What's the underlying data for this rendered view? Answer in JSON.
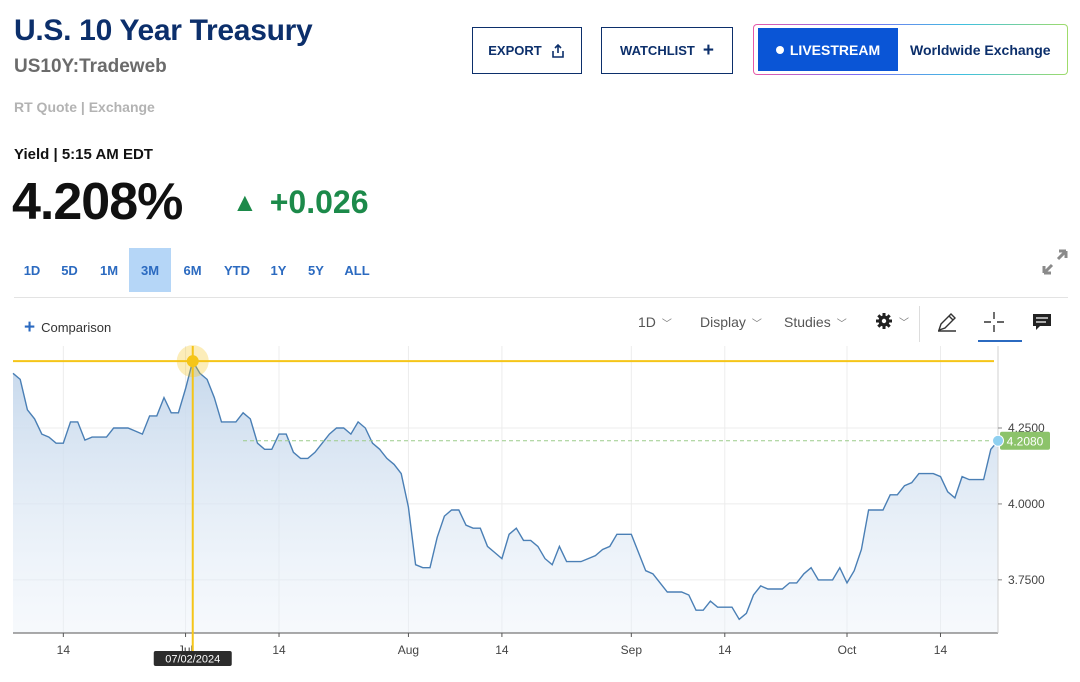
{
  "header": {
    "title": "U.S. 10 Year Treasury",
    "symbol": "US10Y:Tradeweb",
    "quote_source": "RT Quote | Exchange"
  },
  "buttons": {
    "export": "EXPORT",
    "watchlist": "WATCHLIST",
    "livestream": "LIVESTREAM",
    "exchange": "Worldwide Exchange"
  },
  "quote": {
    "label": "Yield | 5:15 AM EDT",
    "price": "4.208%",
    "change": "+0.026",
    "direction": "up",
    "change_color": "#1c8a4a"
  },
  "ranges": {
    "items": [
      "1D",
      "5D",
      "1M",
      "3M",
      "6M",
      "YTD",
      "1Y",
      "5Y",
      "ALL"
    ],
    "active": "3M"
  },
  "toolbar": {
    "comparison": "Comparison",
    "interval": "1D",
    "display": "Display",
    "studies": "Studies",
    "icons": [
      "gear-icon",
      "pencil-icon",
      "crosshair-icon",
      "comment-icon"
    ]
  },
  "chart_data": {
    "type": "area",
    "xlabel": "",
    "ylabel": "",
    "ylim": [
      3.575,
      4.52
    ],
    "yticks": [
      "4.2500",
      "4.0000",
      "3.7500"
    ],
    "ytick_values": [
      4.25,
      4.0,
      3.75
    ],
    "xtick_labels": [
      "14",
      "Jul",
      "14",
      "Aug",
      "14",
      "Sep",
      "14",
      "Oct",
      "14"
    ],
    "xtick_dates": [
      "2024-06-14",
      "2024-07-01",
      "2024-07-14",
      "2024-08-01",
      "2024-08-14",
      "2024-09-01",
      "2024-09-14",
      "2024-10-01",
      "2024-10-14"
    ],
    "last_value_label": "4.2080",
    "last_value": 4.208,
    "crosshair": {
      "date_label": "07/02/2024",
      "date": "2024-07-02",
      "value": 4.47
    },
    "series": [
      {
        "color": "#4a7fb5",
        "fill": "#c6d8ec",
        "points": [
          [
            "2024-06-07",
            4.43
          ],
          [
            "2024-06-08",
            4.41
          ],
          [
            "2024-06-09",
            4.31
          ],
          [
            "2024-06-10",
            4.28
          ],
          [
            "2024-06-11",
            4.23
          ],
          [
            "2024-06-12",
            4.22
          ],
          [
            "2024-06-13",
            4.2
          ],
          [
            "2024-06-14",
            4.2
          ],
          [
            "2024-06-15",
            4.27
          ],
          [
            "2024-06-16",
            4.27
          ],
          [
            "2024-06-17",
            4.21
          ],
          [
            "2024-06-18",
            4.22
          ],
          [
            "2024-06-19",
            4.22
          ],
          [
            "2024-06-20",
            4.22
          ],
          [
            "2024-06-21",
            4.25
          ],
          [
            "2024-06-22",
            4.25
          ],
          [
            "2024-06-23",
            4.25
          ],
          [
            "2024-06-24",
            4.24
          ],
          [
            "2024-06-25",
            4.23
          ],
          [
            "2024-06-26",
            4.29
          ],
          [
            "2024-06-27",
            4.29
          ],
          [
            "2024-06-28",
            4.35
          ],
          [
            "2024-06-29",
            4.3
          ],
          [
            "2024-06-30",
            4.3
          ],
          [
            "2024-07-01",
            4.38
          ],
          [
            "2024-07-02",
            4.47
          ],
          [
            "2024-07-03",
            4.43
          ],
          [
            "2024-07-04",
            4.41
          ],
          [
            "2024-07-05",
            4.35
          ],
          [
            "2024-07-06",
            4.27
          ],
          [
            "2024-07-07",
            4.27
          ],
          [
            "2024-07-08",
            4.27
          ],
          [
            "2024-07-09",
            4.3
          ],
          [
            "2024-07-10",
            4.28
          ],
          [
            "2024-07-11",
            4.2
          ],
          [
            "2024-07-12",
            4.18
          ],
          [
            "2024-07-13",
            4.18
          ],
          [
            "2024-07-14",
            4.23
          ],
          [
            "2024-07-15",
            4.23
          ],
          [
            "2024-07-16",
            4.17
          ],
          [
            "2024-07-17",
            4.15
          ],
          [
            "2024-07-18",
            4.15
          ],
          [
            "2024-07-19",
            4.17
          ],
          [
            "2024-07-20",
            4.2
          ],
          [
            "2024-07-21",
            4.23
          ],
          [
            "2024-07-22",
            4.25
          ],
          [
            "2024-07-23",
            4.25
          ],
          [
            "2024-07-24",
            4.23
          ],
          [
            "2024-07-25",
            4.27
          ],
          [
            "2024-07-26",
            4.25
          ],
          [
            "2024-07-27",
            4.2
          ],
          [
            "2024-07-28",
            4.18
          ],
          [
            "2024-07-29",
            4.15
          ],
          [
            "2024-07-30",
            4.13
          ],
          [
            "2024-07-31",
            4.1
          ],
          [
            "2024-08-01",
            3.99
          ],
          [
            "2024-08-02",
            3.8
          ],
          [
            "2024-08-03",
            3.79
          ],
          [
            "2024-08-04",
            3.79
          ],
          [
            "2024-08-05",
            3.89
          ],
          [
            "2024-08-06",
            3.96
          ],
          [
            "2024-08-07",
            3.98
          ],
          [
            "2024-08-08",
            3.98
          ],
          [
            "2024-08-09",
            3.93
          ],
          [
            "2024-08-10",
            3.92
          ],
          [
            "2024-08-11",
            3.92
          ],
          [
            "2024-08-12",
            3.86
          ],
          [
            "2024-08-13",
            3.84
          ],
          [
            "2024-08-14",
            3.82
          ],
          [
            "2024-08-15",
            3.9
          ],
          [
            "2024-08-16",
            3.92
          ],
          [
            "2024-08-17",
            3.88
          ],
          [
            "2024-08-18",
            3.88
          ],
          [
            "2024-08-19",
            3.86
          ],
          [
            "2024-08-20",
            3.82
          ],
          [
            "2024-08-21",
            3.8
          ],
          [
            "2024-08-22",
            3.86
          ],
          [
            "2024-08-23",
            3.81
          ],
          [
            "2024-08-24",
            3.81
          ],
          [
            "2024-08-25",
            3.81
          ],
          [
            "2024-08-26",
            3.82
          ],
          [
            "2024-08-27",
            3.83
          ],
          [
            "2024-08-28",
            3.85
          ],
          [
            "2024-08-29",
            3.86
          ],
          [
            "2024-08-30",
            3.9
          ],
          [
            "2024-08-31",
            3.9
          ],
          [
            "2024-09-01",
            3.9
          ],
          [
            "2024-09-02",
            3.84
          ],
          [
            "2024-09-03",
            3.78
          ],
          [
            "2024-09-04",
            3.77
          ],
          [
            "2024-09-05",
            3.74
          ],
          [
            "2024-09-06",
            3.71
          ],
          [
            "2024-09-07",
            3.71
          ],
          [
            "2024-09-08",
            3.71
          ],
          [
            "2024-09-09",
            3.7
          ],
          [
            "2024-09-10",
            3.65
          ],
          [
            "2024-09-11",
            3.65
          ],
          [
            "2024-09-12",
            3.68
          ],
          [
            "2024-09-13",
            3.66
          ],
          [
            "2024-09-14",
            3.66
          ],
          [
            "2024-09-15",
            3.66
          ],
          [
            "2024-09-16",
            3.62
          ],
          [
            "2024-09-17",
            3.64
          ],
          [
            "2024-09-18",
            3.7
          ],
          [
            "2024-09-19",
            3.73
          ],
          [
            "2024-09-20",
            3.72
          ],
          [
            "2024-09-21",
            3.72
          ],
          [
            "2024-09-22",
            3.72
          ],
          [
            "2024-09-23",
            3.74
          ],
          [
            "2024-09-24",
            3.74
          ],
          [
            "2024-09-25",
            3.77
          ],
          [
            "2024-09-26",
            3.79
          ],
          [
            "2024-09-27",
            3.75
          ],
          [
            "2024-09-28",
            3.75
          ],
          [
            "2024-09-29",
            3.75
          ],
          [
            "2024-09-30",
            3.79
          ],
          [
            "2024-10-01",
            3.74
          ],
          [
            "2024-10-02",
            3.78
          ],
          [
            "2024-10-03",
            3.85
          ],
          [
            "2024-10-04",
            3.98
          ],
          [
            "2024-10-05",
            3.98
          ],
          [
            "2024-10-06",
            3.98
          ],
          [
            "2024-10-07",
            4.03
          ],
          [
            "2024-10-08",
            4.03
          ],
          [
            "2024-10-09",
            4.06
          ],
          [
            "2024-10-10",
            4.07
          ],
          [
            "2024-10-11",
            4.1
          ],
          [
            "2024-10-12",
            4.1
          ],
          [
            "2024-10-13",
            4.1
          ],
          [
            "2024-10-14",
            4.09
          ],
          [
            "2024-10-15",
            4.04
          ],
          [
            "2024-10-16",
            4.02
          ],
          [
            "2024-10-17",
            4.09
          ],
          [
            "2024-10-18",
            4.08
          ],
          [
            "2024-10-19",
            4.08
          ],
          [
            "2024-10-20",
            4.08
          ],
          [
            "2024-10-21",
            4.18
          ],
          [
            "2024-10-22",
            4.208
          ]
        ]
      }
    ]
  }
}
